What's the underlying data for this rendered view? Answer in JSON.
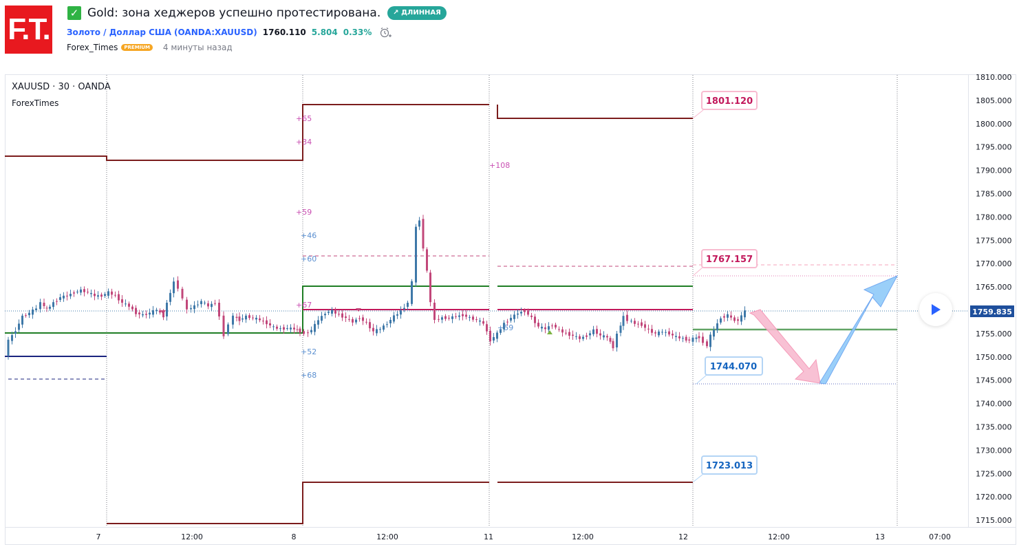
{
  "logo": {
    "text": "F.T."
  },
  "idea": {
    "title": "Gold: зона хеджеров успешно протестирована.",
    "direction_badge": "↗ ДЛИННАЯ",
    "symbol_name": "Золото / Доллар США",
    "symbol_code": "(OANDA:XAUUSD)",
    "price": "1760.110",
    "change": "5.804",
    "change_pct": "0.33%",
    "author": "Forex_Times",
    "author_badge": "PREMIUM",
    "published": "4 минуты назад"
  },
  "chart": {
    "legend_symbol": "XAUUSD · 30 · OANDA",
    "legend_indicator": "ForexTimes",
    "current_price_label": "1759.835",
    "price_axis_ticks": [
      "1810.000",
      "1805.000",
      "1800.000",
      "1795.000",
      "1790.000",
      "1785.000",
      "1780.000",
      "1775.000",
      "1770.000",
      "1765.000",
      "1760.000",
      "1755.000",
      "1750.000",
      "1745.000",
      "1740.000",
      "1735.000",
      "1730.000",
      "1725.000",
      "1720.000",
      "1715.000"
    ],
    "time_axis_ticks": [
      "7",
      "12:00",
      "8",
      "12:00",
      "11",
      "12:00",
      "12",
      "12:00",
      "13",
      "07:00"
    ],
    "callouts": [
      "1801.120",
      "1767.157",
      "1744.070",
      "1723.013"
    ],
    "small_labels": [
      "+65",
      "+34",
      "+108",
      "+59",
      "+46",
      "+60",
      "+67",
      "+52",
      "+68",
      "+59"
    ],
    "colors": {
      "up": "#3e78a8",
      "down": "#c2477a",
      "level_dark": "#7b1c1c",
      "level_green": "#1e7d24",
      "level_navy": "#1a237e",
      "arrow_down": "#f5a3bb",
      "arrow_up": "#8fb9f7"
    }
  }
}
